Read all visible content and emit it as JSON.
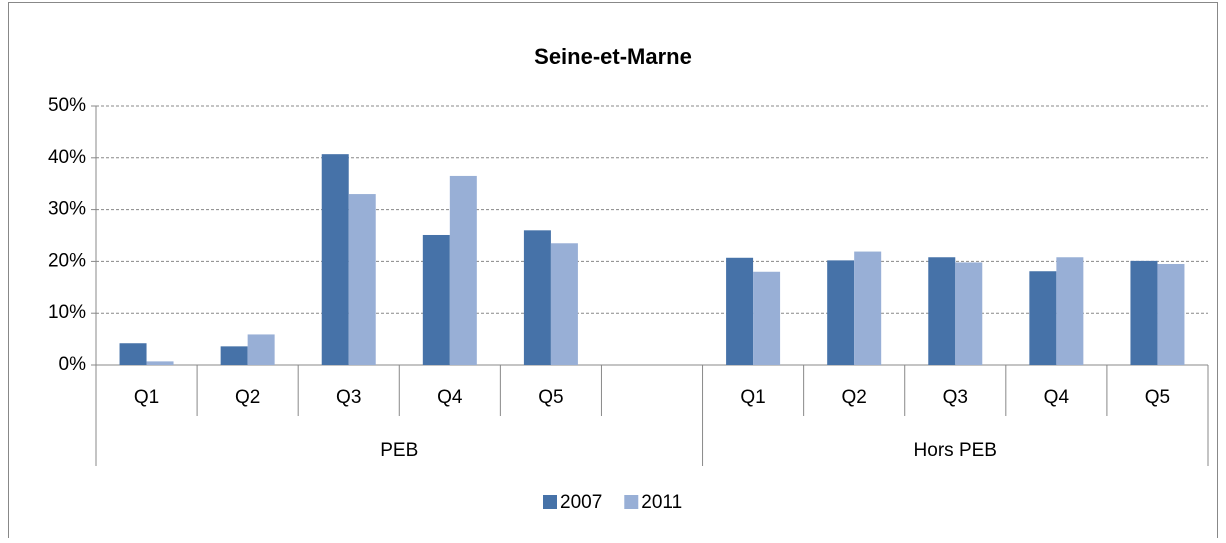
{
  "chart_data": {
    "type": "bar",
    "title": "Seine-et-Marne",
    "categories": [
      "Q1",
      "Q2",
      "Q3",
      "Q4",
      "Q5",
      null,
      "Q1",
      "Q2",
      "Q3",
      "Q4",
      "Q5"
    ],
    "category_groups": [
      "PEB",
      "PEB",
      "PEB",
      "PEB",
      "PEB",
      "PEB",
      "Hors PEB",
      "Hors PEB",
      "Hors PEB",
      "Hors PEB",
      "Hors PEB"
    ],
    "series": [
      {
        "name": "2007",
        "color": "#4672a8",
        "values": [
          4.2,
          3.6,
          40.7,
          25.1,
          26.0,
          null,
          20.7,
          20.2,
          20.8,
          18.1,
          20.1
        ]
      },
      {
        "name": "2011",
        "color": "#98afd6",
        "values": [
          0.7,
          5.9,
          33.0,
          36.5,
          23.5,
          null,
          18.0,
          21.9,
          19.8,
          20.8,
          19.5
        ]
      }
    ],
    "ylim": [
      0,
      50
    ],
    "yticks": [
      {
        "value": 0,
        "label": "0%"
      },
      {
        "value": 10,
        "label": "10%"
      },
      {
        "value": 20,
        "label": "20%"
      },
      {
        "value": 30,
        "label": "30%"
      },
      {
        "value": 40,
        "label": "40%"
      },
      {
        "value": 50,
        "label": "50%"
      }
    ],
    "grid": true,
    "legend": "bottom"
  }
}
